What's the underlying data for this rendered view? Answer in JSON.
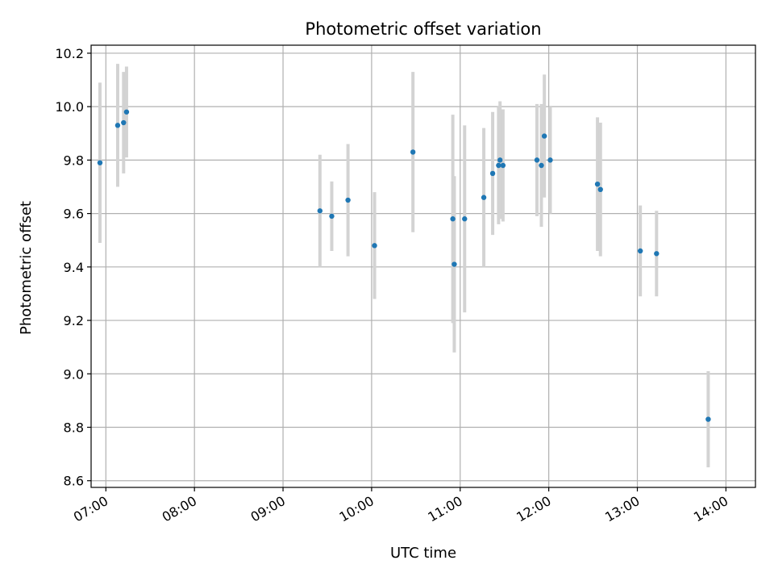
{
  "chart_data": {
    "type": "scatter",
    "title": "Photometric offset variation",
    "xlabel": "UTC time",
    "ylabel": "Photometric offset",
    "grid": true,
    "x_ticks": [
      "07:00",
      "08:00",
      "09:00",
      "10:00",
      "11:00",
      "12:00",
      "13:00",
      "14:00"
    ],
    "y_ticks": [
      "8.6",
      "8.8",
      "9.0",
      "9.2",
      "9.4",
      "9.6",
      "9.8",
      "10.0",
      "10.2"
    ],
    "xlim": [
      "06:50",
      "14:20"
    ],
    "ylim": [
      8.575,
      10.23
    ],
    "point_color": "#1f77b4",
    "errorbar_color": "#d3d3d3",
    "points": [
      {
        "t": "06:56",
        "y": 9.79,
        "err": 0.3
      },
      {
        "t": "07:08",
        "y": 9.93,
        "err": 0.23
      },
      {
        "t": "07:12",
        "y": 9.94,
        "err": 0.19
      },
      {
        "t": "07:14",
        "y": 9.98,
        "err": 0.17
      },
      {
        "t": "09:25",
        "y": 9.61,
        "err": 0.21
      },
      {
        "t": "09:33",
        "y": 9.59,
        "err": 0.13
      },
      {
        "t": "09:44",
        "y": 9.65,
        "err": 0.21
      },
      {
        "t": "10:02",
        "y": 9.48,
        "err": 0.2
      },
      {
        "t": "10:28",
        "y": 9.83,
        "err": 0.3
      },
      {
        "t": "10:55",
        "y": 9.58,
        "err": 0.39
      },
      {
        "t": "10:56",
        "y": 9.41,
        "err": 0.33
      },
      {
        "t": "11:03",
        "y": 9.58,
        "err": 0.35
      },
      {
        "t": "11:16",
        "y": 9.66,
        "err": 0.26
      },
      {
        "t": "11:22",
        "y": 9.75,
        "err": 0.23
      },
      {
        "t": "11:26",
        "y": 9.78,
        "err": 0.22
      },
      {
        "t": "11:27",
        "y": 9.8,
        "err": 0.22
      },
      {
        "t": "11:29",
        "y": 9.78,
        "err": 0.21
      },
      {
        "t": "11:52",
        "y": 9.8,
        "err": 0.21
      },
      {
        "t": "11:55",
        "y": 9.78,
        "err": 0.23
      },
      {
        "t": "11:57",
        "y": 9.89,
        "err": 0.23
      },
      {
        "t": "12:01",
        "y": 9.8,
        "err": 0.2
      },
      {
        "t": "12:33",
        "y": 9.71,
        "err": 0.25
      },
      {
        "t": "12:35",
        "y": 9.69,
        "err": 0.25
      },
      {
        "t": "13:02",
        "y": 9.46,
        "err": 0.17
      },
      {
        "t": "13:13",
        "y": 9.45,
        "err": 0.16
      },
      {
        "t": "13:48",
        "y": 8.83,
        "err": 0.18
      }
    ]
  }
}
